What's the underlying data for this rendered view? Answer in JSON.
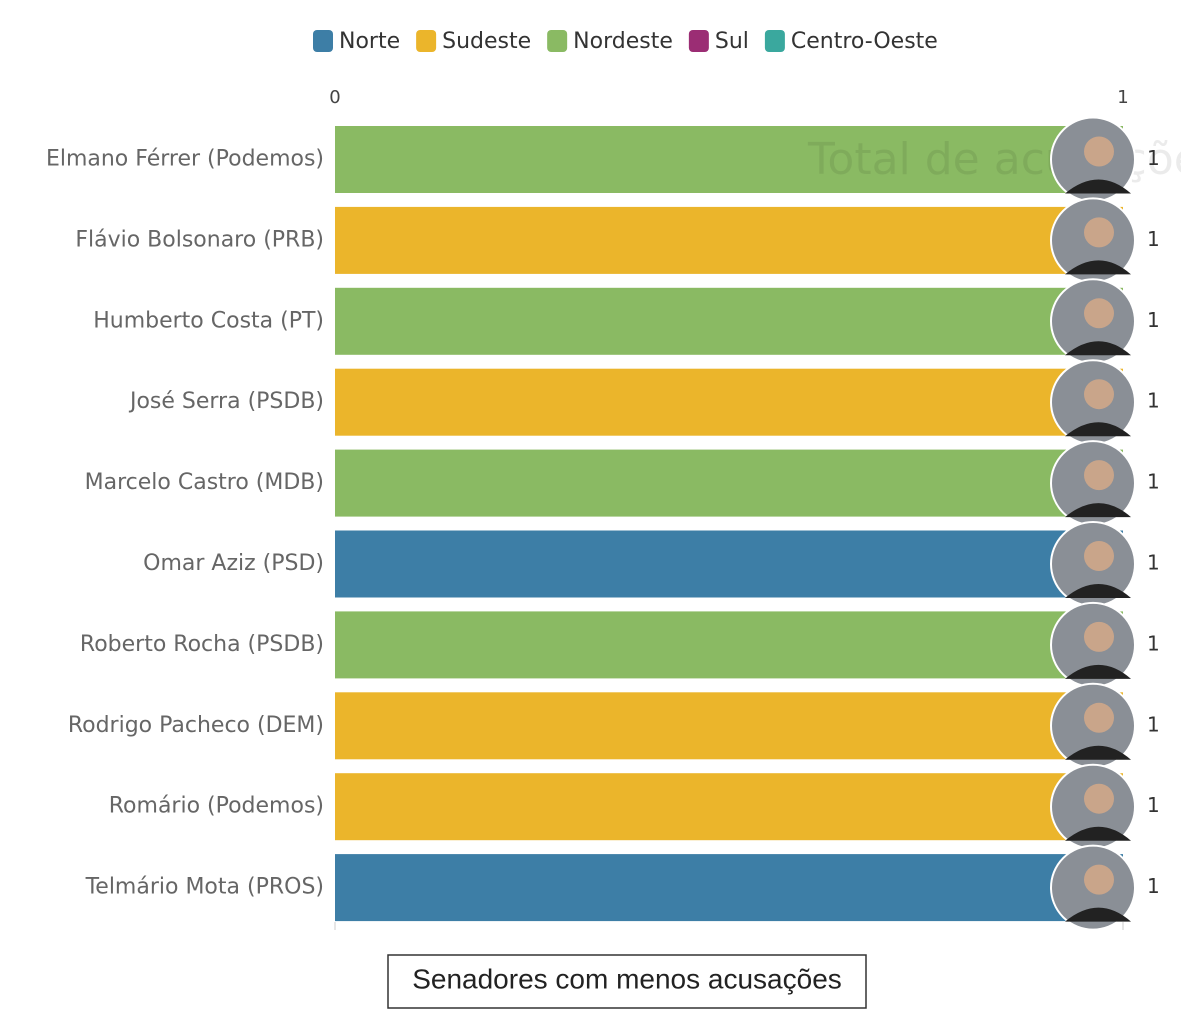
{
  "chart_data": {
    "type": "hbar",
    "watermark": "Total de acusações",
    "caption": "Senadores com menos acusações",
    "categories": [
      "Elmano Férrer (Podemos)",
      "Flávio Bolsonaro (PRB)",
      "Humberto Costa (PT)",
      "José Serra (PSDB)",
      "Marcelo Castro (MDB)",
      "Omar Aziz (PSD)",
      "Roberto Rocha (PSDB)",
      "Rodrigo Pacheco (DEM)",
      "Romário (Podemos)",
      "Telmário Mota (PROS)"
    ],
    "series": [
      {
        "name": "Norte",
        "color": "#3d7ea6",
        "values": [
          null,
          null,
          null,
          null,
          null,
          1,
          null,
          null,
          null,
          1
        ]
      },
      {
        "name": "Sudeste",
        "color": "#ebb52b",
        "values": [
          null,
          1,
          null,
          1,
          null,
          null,
          null,
          1,
          1,
          null
        ]
      },
      {
        "name": "Nordeste",
        "color": "#8aba63",
        "values": [
          1,
          null,
          1,
          null,
          1,
          null,
          1,
          null,
          null,
          null
        ]
      },
      {
        "name": "Sul",
        "color": "#9b2d74",
        "values": [
          null,
          null,
          null,
          null,
          null,
          null,
          null,
          null,
          null,
          null
        ]
      },
      {
        "name": "Centro-Oeste",
        "color": "#3aa89e",
        "values": [
          null,
          null,
          null,
          null,
          null,
          null,
          null,
          null,
          null,
          null
        ]
      }
    ],
    "xlim": [
      0,
      1
    ],
    "xticks": [
      0,
      1
    ]
  }
}
